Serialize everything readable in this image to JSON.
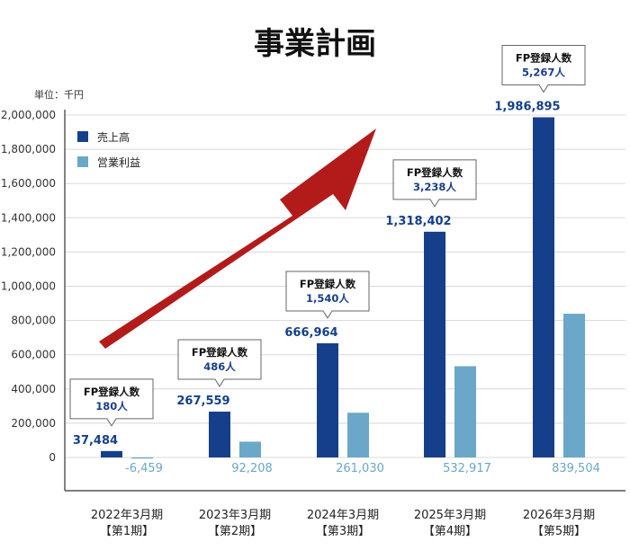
{
  "chart_data": {
    "type": "bar",
    "title": "事業計画",
    "unit_label": "単位：千円",
    "ylim": [
      -200000,
      2000000
    ],
    "yticks": [
      "2,000,000",
      "1,800,000",
      "1,600,000",
      "1,400,000",
      "1,200,000",
      "1,000,000",
      "800,000",
      "600,000",
      "400,000",
      "200,000",
      "0"
    ],
    "ytick_values": [
      2000000,
      1800000,
      1600000,
      1400000,
      1200000,
      1000000,
      800000,
      600000,
      400000,
      200000,
      0
    ],
    "categories": [
      "2022年3月期",
      "2023年3月期",
      "2024年3月期",
      "2025年3月期",
      "2026年3月期"
    ],
    "category_sub": [
      "【第1期】",
      "【第2期】",
      "【第3期】",
      "【第4期】",
      "【第5期】"
    ],
    "series": [
      {
        "name": "売上高",
        "color": "#153f8b",
        "values": [
          37484,
          267559,
          666964,
          1318402,
          1986895
        ],
        "labels": [
          "37,484",
          "267,559",
          "666,964",
          "1,318,402",
          "1,986,895"
        ]
      },
      {
        "name": "営業利益",
        "color": "#6aa7c8",
        "values": [
          -6459,
          92208,
          261030,
          532917,
          839504
        ],
        "labels": [
          "-6,459",
          "92,208",
          "261,030",
          "532,917",
          "839,504"
        ]
      }
    ],
    "callouts": {
      "heading": "FP登録人数",
      "values": [
        "180人",
        "486人",
        "1,540人",
        "3,238人",
        "5,267人"
      ]
    },
    "legend_position": "top-left",
    "arrow_color": "#b31b1b"
  }
}
